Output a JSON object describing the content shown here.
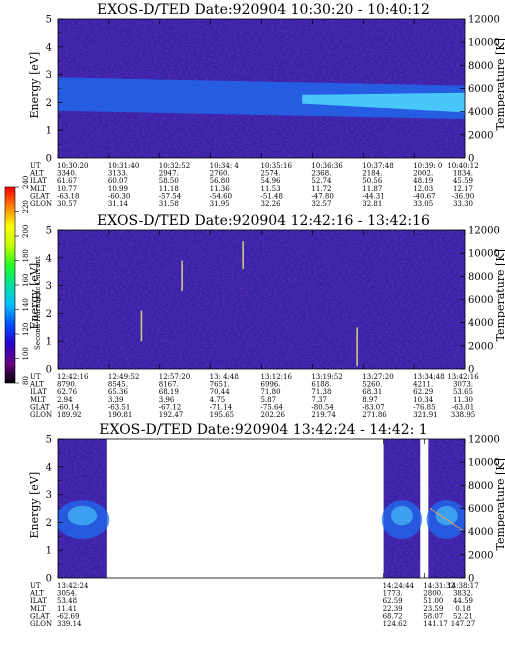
{
  "chart_data": [
    {
      "type": "heatmap",
      "title": "EXOS-D/TED   Date:920904  10:30:20 - 10:40:12",
      "ylabel": "Energy [eV]",
      "y2label": "Temperature [K]",
      "ylim": [
        0,
        5
      ],
      "y2lim": [
        0,
        12000
      ],
      "yticks": [
        "0",
        "1",
        "2",
        "3",
        "4",
        "5"
      ],
      "y2ticks": [
        "0",
        "2000",
        "4000",
        "6000",
        "8000",
        "10000",
        "12000"
      ],
      "band": {
        "kind": "continuous",
        "center_start": 2.3,
        "center_end": 2.0,
        "width": 0.6,
        "bright_from": 0.6,
        "intensity": 1.0
      },
      "row_labels": [
        "UT",
        "ALT",
        "ILAT",
        "MLT",
        "GLAT",
        "GLON"
      ],
      "columns": [
        [
          "10:30:20",
          "3340.",
          "61.67",
          "10.77",
          "-63.18",
          "30.57"
        ],
        [
          "10:31:40",
          "3133.",
          "60.07",
          "10.99",
          "-60.30",
          "31.14"
        ],
        [
          "10:32:52",
          "2947.",
          "58.50",
          "11.18",
          "-57.54",
          "31.58"
        ],
        [
          "10:34: 4",
          "2760.",
          "56.80",
          "11.36",
          "-54.60",
          "31.95"
        ],
        [
          "10:35:16",
          "2574.",
          "54.96",
          "11.53",
          "-51.48",
          "32.26"
        ],
        [
          "10:36:36",
          "2368.",
          "52.74",
          "11.72",
          "-47.80",
          "32.57"
        ],
        [
          "10:37:48",
          "2184.",
          "50.56",
          "11.87",
          "-44.31",
          "32.81"
        ],
        [
          "10:39: 0",
          "2002.",
          "48.19",
          "12.03",
          "-40.67",
          "33.05"
        ],
        [
          "10:40:12",
          "1834.",
          "45.59",
          "12.17",
          "-36.90",
          "33.30"
        ]
      ]
    },
    {
      "type": "heatmap",
      "title": "EXOS-D/TED   Date:920904  12:42:16 - 13:42:16",
      "ylabel": "Energy [eV]",
      "y2label": "Temperature [K]",
      "ylim": [
        0,
        5
      ],
      "y2lim": [
        0,
        12000
      ],
      "yticks": [
        "0",
        "1",
        "2",
        "3",
        "4",
        "5"
      ],
      "y2ticks": [
        "0",
        "2000",
        "4000",
        "6000",
        "8000",
        "10000",
        "12000"
      ],
      "band": {
        "kind": "faint"
      },
      "spikes": [
        {
          "x": 0.205,
          "y0": 1.0,
          "y1": 2.1
        },
        {
          "x": 0.305,
          "y0": 2.8,
          "y1": 3.9
        },
        {
          "x": 0.455,
          "y0": 3.6,
          "y1": 4.6
        },
        {
          "x": 0.735,
          "y0": 0.1,
          "y1": 1.5
        }
      ],
      "row_labels": [
        "UT",
        "ALT",
        "ILAT",
        "MLT",
        "GLAT",
        "GLON"
      ],
      "columns": [
        [
          "12:42:16",
          "8790.",
          "62.76",
          "2.94",
          "-60.14",
          "189.92"
        ],
        [
          "12:49:52",
          "8545.",
          "65.36",
          "3.39",
          "-63.51",
          "190.81"
        ],
        [
          "12:57:20",
          "8167.",
          "68.19",
          "3.96",
          "-67.12",
          "192.47"
        ],
        [
          "13: 4:48",
          "7651.",
          "70.44",
          "4.75",
          "-71.14",
          "195.65"
        ],
        [
          "13:12:16",
          "6996.",
          "71.80",
          "5.87",
          "-75.64",
          "202.26"
        ],
        [
          "13:19:52",
          "6188.",
          "71.38",
          "7.37",
          "-80.54",
          "219.74"
        ],
        [
          "13:27:20",
          "5260.",
          "68.31",
          "8.97",
          "-83.07",
          "271.86"
        ],
        [
          "13:34:48",
          "4211.",
          "62.29",
          "10.34",
          "-76.85",
          "321.91"
        ],
        [
          "13:42:16",
          "3073.",
          "53.65",
          "11.30",
          "-63.01",
          "338.95"
        ]
      ]
    },
    {
      "type": "heatmap",
      "title": "EXOS-D/TED   Date:920904  13:42:24 - 14:42: 1",
      "ylabel": "Energy [eV]",
      "y2label": "Temperature [K]",
      "ylim": [
        0,
        5
      ],
      "y2lim": [
        0,
        12000
      ],
      "yticks": [
        "0",
        "1",
        "2",
        "3",
        "4",
        "5"
      ],
      "y2ticks": [
        "0",
        "2000",
        "4000",
        "6000",
        "8000",
        "10000",
        "12000"
      ],
      "band": {
        "kind": "segments"
      },
      "data_segments": [
        [
          0.0,
          0.12
        ],
        [
          0.8,
          0.89
        ],
        [
          0.91,
          1.0
        ]
      ],
      "row_labels": [
        "UT",
        "ALT",
        "ILAT",
        "MLT",
        "GLAT",
        "GLON"
      ],
      "columns": [
        {
          "pos": 0.0,
          "vals": [
            "13:42:24",
            "3054.",
            "53.48",
            "11.41",
            "-62.69",
            "339.14"
          ]
        },
        {
          "pos": 0.8,
          "vals": [
            "14:24:44",
            "1773.",
            "62.59",
            "22.39",
            "68.72",
            "124.62"
          ]
        },
        {
          "pos": 0.9,
          "vals": [
            "14:31:32",
            "2800.",
            "51.00",
            "23.59",
            "58.07",
            "141.17"
          ]
        },
        {
          "pos": 1.0,
          "vals": [
            "14:38:17",
            "3832.",
            "44.59",
            "0.18",
            "52.21",
            "147.27"
          ]
        }
      ]
    }
  ],
  "colorbar": {
    "label": "Second Harmonic Current",
    "ticks": [
      "80",
      "100",
      "120",
      "140",
      "160",
      "180",
      "200",
      "220",
      "240"
    ],
    "colors": [
      "#000000",
      "#6a0080",
      "#2a00c8",
      "#0050ff",
      "#00c0ff",
      "#00e0a0",
      "#20ff20",
      "#c0ff00",
      "#ffff00",
      "#ff8000",
      "#ff0000"
    ]
  },
  "colors": {
    "background": "#3a22a6",
    "band_mid": "#1f6cf0",
    "band_core": "#50d8ff",
    "spike": "#c8c880"
  }
}
